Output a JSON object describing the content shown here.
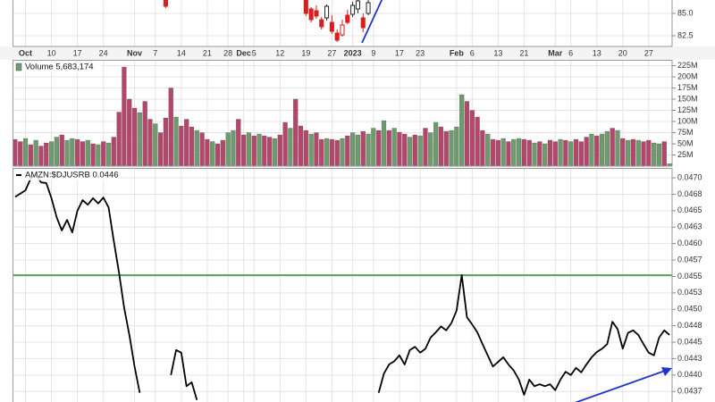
{
  "chart_data": [
    {
      "type": "candlestick",
      "categories": [
        null,
        null,
        "Oct",
        null,
        null,
        null,
        null,
        "10",
        null,
        null,
        null,
        null,
        "17",
        null,
        null,
        null,
        null,
        "24",
        null,
        null,
        null,
        null,
        null,
        "Nov",
        null,
        null,
        null,
        "7",
        null,
        null,
        null,
        null,
        "14",
        null,
        null,
        null,
        null,
        "21",
        null,
        null,
        null,
        "28",
        null,
        null,
        "Dec",
        null,
        "5",
        null,
        null,
        null,
        null,
        "12",
        null,
        null,
        null,
        null,
        "19",
        null,
        null,
        null,
        null,
        "27",
        null,
        null,
        null,
        "2023",
        null,
        null,
        null,
        "9",
        null,
        null,
        null,
        null,
        "17",
        null,
        null,
        null,
        "23",
        null,
        null,
        null,
        null,
        null,
        null,
        "Feb",
        null,
        null,
        "6",
        null,
        null,
        null,
        null,
        "13",
        null,
        null,
        null,
        null,
        "21",
        null,
        null,
        null,
        null,
        null,
        "Mar",
        null,
        null,
        "6",
        null,
        null,
        null,
        null,
        "13",
        null,
        null,
        null,
        null,
        "20",
        null,
        null,
        null,
        null,
        "27",
        null,
        null,
        null,
        null
      ],
      "open": [
        null,
        null,
        null,
        null,
        null,
        null,
        null,
        null,
        null,
        null,
        null,
        null,
        null,
        null,
        null,
        null,
        null,
        null,
        null,
        null,
        null,
        null,
        null,
        null,
        null,
        null,
        null,
        null,
        null,
        86.6,
        null,
        null,
        null,
        null,
        null,
        null,
        null,
        null,
        null,
        null,
        null,
        null,
        null,
        null,
        null,
        null,
        null,
        null,
        null,
        null,
        null,
        null,
        null,
        null,
        null,
        null,
        86.6,
        85.5,
        85.3,
        84.3,
        84.5,
        84.0,
        82.8,
        82.6,
        84.8,
        84.9,
        85.5,
        84.5,
        85.0,
        null,
        null,
        null,
        null,
        null,
        null,
        null,
        null,
        null,
        null,
        null,
        null,
        null,
        null,
        null,
        null,
        null,
        null,
        null,
        null,
        null,
        null,
        null,
        null,
        null,
        null,
        null,
        null,
        null,
        null,
        null,
        null,
        null,
        null,
        null,
        null,
        null,
        null,
        null,
        null,
        null,
        null,
        null,
        null,
        null,
        null,
        null,
        null,
        null,
        null,
        null,
        null,
        null,
        null,
        null,
        null,
        null,
        null
      ],
      "high": [
        null,
        null,
        null,
        null,
        null,
        null,
        null,
        null,
        null,
        null,
        null,
        null,
        null,
        null,
        null,
        null,
        null,
        null,
        null,
        null,
        null,
        null,
        null,
        null,
        null,
        null,
        null,
        null,
        null,
        86.8,
        null,
        null,
        null,
        null,
        null,
        null,
        null,
        null,
        null,
        null,
        null,
        null,
        null,
        null,
        null,
        null,
        null,
        null,
        null,
        null,
        null,
        null,
        null,
        null,
        null,
        null,
        86.8,
        85.7,
        85.9,
        84.6,
        86.0,
        84.8,
        83.2,
        84.3,
        85.4,
        86.3,
        86.6,
        85.0,
        86.5,
        null,
        null,
        null,
        null,
        null,
        null,
        null,
        null,
        null,
        null,
        null,
        null,
        null,
        null,
        null,
        null,
        null,
        null,
        null,
        null,
        null,
        null,
        null,
        null,
        null,
        null,
        null,
        null,
        null,
        null,
        null,
        null,
        null,
        null,
        null,
        null,
        null,
        null,
        null,
        null,
        null,
        null,
        null,
        null,
        null,
        null,
        null,
        null,
        null,
        null,
        null,
        null,
        null,
        null,
        null,
        null,
        null,
        null
      ],
      "low": [
        null,
        null,
        null,
        null,
        null,
        null,
        null,
        null,
        null,
        null,
        null,
        null,
        null,
        null,
        null,
        null,
        null,
        null,
        null,
        null,
        null,
        null,
        null,
        null,
        null,
        null,
        null,
        null,
        null,
        85.6,
        null,
        null,
        null,
        null,
        null,
        null,
        null,
        null,
        null,
        null,
        null,
        null,
        null,
        null,
        null,
        null,
        null,
        null,
        null,
        null,
        null,
        null,
        null,
        null,
        null,
        null,
        84.7,
        84.0,
        84.4,
        83.2,
        84.2,
        82.7,
        81.8,
        82.4,
        83.8,
        84.6,
        85.0,
        82.9,
        84.8,
        null,
        null,
        null,
        null,
        null,
        null,
        null,
        null,
        null,
        null,
        null,
        null,
        null,
        null,
        null,
        null,
        null,
        null,
        null,
        null,
        null,
        null,
        null,
        null,
        null,
        null,
        null,
        null,
        null,
        null,
        null,
        null,
        null,
        null,
        null,
        null,
        null,
        null,
        null,
        null,
        null,
        null,
        null,
        null,
        null,
        null,
        null,
        null,
        null,
        null,
        null,
        null,
        null,
        null,
        null,
        null,
        null,
        null
      ],
      "close": [
        null,
        null,
        null,
        null,
        null,
        null,
        null,
        null,
        null,
        null,
        null,
        null,
        null,
        null,
        null,
        null,
        null,
        null,
        null,
        null,
        null,
        null,
        null,
        null,
        null,
        null,
        null,
        null,
        null,
        85.8,
        null,
        null,
        null,
        null,
        null,
        null,
        null,
        null,
        null,
        null,
        null,
        null,
        null,
        null,
        null,
        null,
        null,
        null,
        null,
        null,
        null,
        null,
        null,
        null,
        null,
        null,
        85.0,
        84.3,
        84.7,
        83.5,
        85.8,
        83.0,
        82.0,
        83.7,
        84.0,
        85.9,
        86.4,
        83.4,
        86.2,
        null,
        null,
        null,
        null,
        null,
        null,
        null,
        null,
        null,
        null,
        null,
        null,
        null,
        null,
        null,
        null,
        null,
        null,
        null,
        null,
        null,
        null,
        null,
        null,
        null,
        null,
        null,
        null,
        null,
        null,
        null,
        null,
        null,
        null,
        null,
        null,
        null,
        null,
        null,
        null,
        null,
        null,
        null,
        null,
        null,
        null,
        null,
        null,
        null,
        null,
        null,
        null,
        null,
        null,
        null,
        null,
        null,
        null
      ],
      "colors": [
        null,
        null,
        null,
        null,
        null,
        null,
        null,
        null,
        null,
        null,
        null,
        null,
        null,
        null,
        null,
        null,
        null,
        null,
        null,
        null,
        null,
        null,
        null,
        null,
        null,
        null,
        null,
        null,
        null,
        "#d42020",
        null,
        null,
        null,
        null,
        null,
        null,
        null,
        null,
        null,
        null,
        null,
        null,
        null,
        null,
        null,
        null,
        null,
        null,
        null,
        null,
        null,
        null,
        null,
        null,
        null,
        null,
        "#d42020",
        "#d42020",
        "#d42020",
        "#d42020",
        "#222222",
        "#d42020",
        "#d42020",
        "#d42020",
        "#d42020",
        "#222222",
        "#222222",
        "#d42020",
        "#222222",
        null,
        null,
        null,
        null,
        null,
        null,
        null,
        null,
        null,
        null,
        null,
        null,
        null,
        null,
        null,
        null,
        null,
        null,
        null,
        null,
        null,
        null,
        null,
        null,
        null,
        null,
        null,
        null,
        null,
        null,
        null,
        null,
        null,
        null,
        null,
        null,
        null,
        null,
        null,
        null,
        null,
        null,
        null,
        null,
        null,
        null,
        null,
        null,
        null,
        null,
        null,
        null,
        null,
        null,
        null,
        null,
        null,
        null
      ],
      "ylim": [
        81.3,
        86.5
      ],
      "yticks": [
        {
          "value": 85,
          "label": "85.0"
        },
        82.5
      ]
    },
    {
      "type": "bar",
      "title": "Volume 5,683,174",
      "legend_color": "#6e9b6e",
      "values": [
        60,
        55,
        62,
        48,
        58,
        45,
        52,
        55,
        65,
        70,
        58,
        62,
        60,
        55,
        58,
        50,
        48,
        55,
        52,
        65,
        121,
        222,
        150,
        130,
        120,
        145,
        105,
        95,
        75,
        108,
        175,
        110,
        90,
        105,
        88,
        80,
        75,
        60,
        55,
        50,
        58,
        75,
        80,
        105,
        70,
        75,
        68,
        72,
        68,
        65,
        62,
        70,
        98,
        85,
        150,
        90,
        80,
        72,
        75,
        60,
        62,
        60,
        58,
        62,
        68,
        75,
        70,
        78,
        72,
        85,
        80,
        102,
        80,
        85,
        76,
        72,
        65,
        70,
        68,
        85,
        75,
        98,
        88,
        78,
        80,
        88,
        160,
        145,
        125,
        110,
        80,
        72,
        60,
        58,
        62,
        55,
        60,
        62,
        60,
        58,
        52,
        55,
        50,
        58,
        55,
        60,
        58,
        55,
        60,
        55,
        65,
        72,
        68,
        72,
        78,
        85,
        80,
        62,
        58,
        60,
        58,
        55,
        58,
        52,
        50,
        55,
        5.683174
      ],
      "colors": [
        "#b5456b",
        "#b5456b",
        "#6e9b6e",
        "#b5456b",
        "#6e9b6e",
        "#b5456b",
        "#b5456b",
        "#6e9b6e",
        "#6e9b6e",
        "#b5456b",
        "#6e9b6e",
        "#6e9b6e",
        "#b5456b",
        "#b5456b",
        "#6e9b6e",
        "#b5456b",
        "#6e9b6e",
        "#b5456b",
        "#6e9b6e",
        "#b5456b",
        "#b5456b",
        "#b5456b",
        "#b5456b",
        "#b5456b",
        "#6e9b6e",
        "#b5456b",
        "#b5456b",
        "#6e9b6e",
        "#b5456b",
        "#b5456b",
        "#b5456b",
        "#6e9b6e",
        "#b5456b",
        "#b5456b",
        "#b5456b",
        "#6e9b6e",
        "#b5456b",
        "#b5456b",
        "#6e9b6e",
        "#b5456b",
        "#b5456b",
        "#6e9b6e",
        "#6e9b6e",
        "#b5456b",
        "#b5456b",
        "#6e9b6e",
        "#b5456b",
        "#6e9b6e",
        "#b5456b",
        "#b5456b",
        "#6e9b6e",
        "#b5456b",
        "#b5456b",
        "#6e9b6e",
        "#b5456b",
        "#b5456b",
        "#b5456b",
        "#6e9b6e",
        "#b5456b",
        "#b5456b",
        "#6e9b6e",
        "#b5456b",
        "#b5456b",
        "#6e9b6e",
        "#b5456b",
        "#6e9b6e",
        "#6e9b6e",
        "#b5456b",
        "#6e9b6e",
        "#6e9b6e",
        "#b5456b",
        "#6e9b6e",
        "#b5456b",
        "#6e9b6e",
        "#b5456b",
        "#b5456b",
        "#6e9b6e",
        "#b5456b",
        "#6e9b6e",
        "#b5456b",
        "#6e9b6e",
        "#6e9b6e",
        "#b5456b",
        "#b5456b",
        "#6e9b6e",
        "#6e9b6e",
        "#6e9b6e",
        "#b5456b",
        "#b5456b",
        "#b5456b",
        "#b5456b",
        "#6e9b6e",
        "#b5456b",
        "#b5456b",
        "#6e9b6e",
        "#b5456b",
        "#6e9b6e",
        "#6e9b6e",
        "#b5456b",
        "#b5456b",
        "#6e9b6e",
        "#b5456b",
        "#6e9b6e",
        "#b5456b",
        "#b5456b",
        "#6e9b6e",
        "#b5456b",
        "#6e9b6e",
        "#b5456b",
        "#b5456b",
        "#b5456b",
        "#6e9b6e",
        "#b5456b",
        "#6e9b6e",
        "#6e9b6e",
        "#b5456b",
        "#6e9b6e",
        "#b5456b",
        "#6e9b6e",
        "#b5456b",
        "#6e9b6e",
        "#b5456b",
        "#b5456b",
        "#6e9b6e",
        "#6e9b6e",
        "#b5456b",
        "#6e9b6e"
      ],
      "ylim": [
        0,
        238
      ],
      "yticks": [
        {
          "value": 25,
          "label": "25M"
        },
        {
          "value": 50,
          "label": "50M"
        },
        {
          "value": 75,
          "label": "75M"
        },
        {
          "value": 100,
          "label": "100M"
        },
        {
          "value": 125,
          "label": "125M"
        },
        {
          "value": 150,
          "label": "150M"
        },
        {
          "value": 175,
          "label": "175M"
        },
        {
          "value": 200,
          "label": "200M"
        },
        {
          "value": 225,
          "label": "225M"
        }
      ]
    },
    {
      "type": "line",
      "title": "AMZN:$DJUSRB 0.0446",
      "color": "#000000",
      "values": [
        0.04671,
        0.04676,
        0.04681,
        0.04699,
        0.04705,
        0.04693,
        0.04692,
        0.04669,
        0.0464,
        0.0462,
        0.04636,
        0.04617,
        0.0465,
        0.04666,
        0.04659,
        0.04669,
        0.04661,
        0.0467,
        0.04655,
        0.04604,
        0.04556,
        0.04502,
        0.04461,
        0.04413,
        0.04373,
        null,
        null,
        null,
        null,
        null,
        0.044,
        0.04438,
        0.04434,
        0.04383,
        0.04389,
        0.04362,
        null,
        null,
        null,
        null,
        null,
        null,
        null,
        null,
        null,
        null,
        null,
        null,
        null,
        null,
        null,
        null,
        null,
        null,
        null,
        null,
        null,
        null,
        null,
        null,
        null,
        null,
        null,
        null,
        null,
        null,
        null,
        null,
        null,
        null,
        0.04373,
        0.04402,
        0.04416,
        0.04421,
        0.0443,
        0.04416,
        0.04438,
        0.04443,
        0.04434,
        0.0444,
        0.04457,
        0.04465,
        0.04474,
        0.04468,
        0.04479,
        0.04498,
        0.04552,
        0.04488,
        0.04477,
        0.04465,
        0.04447,
        0.0443,
        0.04413,
        0.0442,
        0.04427,
        0.04416,
        0.04407,
        0.04393,
        0.0437,
        0.04393,
        0.04383,
        0.04386,
        0.04383,
        0.04386,
        0.04377,
        0.04393,
        0.04405,
        0.044,
        0.04411,
        0.04404,
        0.04416,
        0.04427,
        0.04435,
        0.0444,
        0.04447,
        0.04481,
        0.0447,
        0.0444,
        0.04464,
        0.04468,
        0.04461,
        0.04447,
        0.04434,
        0.0443,
        0.04457,
        0.04468,
        0.04461
      ],
      "reference_line": {
        "value": 0.04552,
        "color": "#2e8b2e"
      },
      "ylim": [
        0.04359,
        0.04715
      ],
      "yticks": [
        {
          "value": 0.047,
          "label": "0.0470"
        },
        {
          "value": 0.04675,
          "label": "0.0468"
        },
        {
          "value": 0.0465,
          "label": "0.0465"
        },
        {
          "value": 0.04625,
          "label": "0.0463"
        },
        {
          "value": 0.046,
          "label": "0.0460"
        },
        {
          "value": 0.04575,
          "label": "0.0457"
        },
        {
          "value": 0.0455,
          "label": "0.0455"
        },
        {
          "value": 0.04525,
          "label": "0.0453"
        },
        {
          "value": 0.045,
          "label": "0.0450"
        },
        {
          "value": 0.04475,
          "label": "0.0448"
        },
        {
          "value": 0.0445,
          "label": "0.0445"
        },
        {
          "value": 0.04425,
          "label": "0.0443"
        },
        {
          "value": 0.044,
          "label": "0.0440"
        },
        {
          "value": 0.04375,
          "label": "0.0437"
        }
      ]
    }
  ]
}
